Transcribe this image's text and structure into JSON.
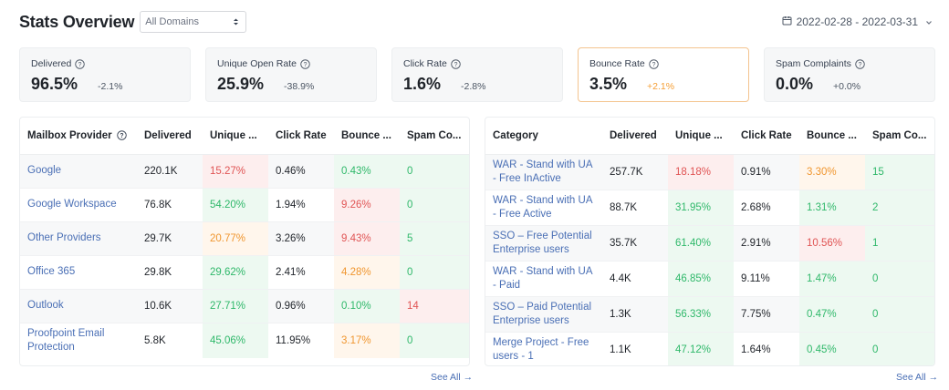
{
  "header": {
    "title": "Stats Overview",
    "domain_select": "All Domains",
    "date_range": "2022-02-28 - 2022-03-31"
  },
  "kpis": [
    {
      "label": "Delivered",
      "value": "96.5%",
      "change": "-2.1%"
    },
    {
      "label": "Unique Open Rate",
      "value": "25.9%",
      "change": "-38.9%"
    },
    {
      "label": "Click Rate",
      "value": "1.6%",
      "change": "-2.8%"
    },
    {
      "label": "Bounce Rate",
      "value": "3.5%",
      "change": "+2.1%"
    },
    {
      "label": "Spam Complaints",
      "value": "0.0%",
      "change": "+0.0%"
    }
  ],
  "mailbox_table": {
    "headers": [
      "Mailbox Provider",
      "Delivered",
      "Unique ...",
      "Click Rate",
      "Bounce ...",
      "Spam Co..."
    ],
    "rows": [
      {
        "name": "Google",
        "delivered": "220.1K",
        "open": "15.27%",
        "click": "0.46%",
        "bounce": "0.43%",
        "spam": "0"
      },
      {
        "name": "Google Workspace",
        "delivered": "76.8K",
        "open": "54.20%",
        "click": "1.94%",
        "bounce": "9.26%",
        "spam": "0"
      },
      {
        "name": "Other Providers",
        "delivered": "29.7K",
        "open": "20.77%",
        "click": "3.26%",
        "bounce": "9.43%",
        "spam": "5"
      },
      {
        "name": "Office 365",
        "delivered": "29.8K",
        "open": "29.62%",
        "click": "2.41%",
        "bounce": "4.28%",
        "spam": "0"
      },
      {
        "name": "Outlook",
        "delivered": "10.6K",
        "open": "27.71%",
        "click": "0.96%",
        "bounce": "0.10%",
        "spam": "14"
      },
      {
        "name": "Proofpoint Email Protection",
        "delivered": "5.8K",
        "open": "45.06%",
        "click": "11.95%",
        "bounce": "3.17%",
        "spam": "0"
      }
    ],
    "see_all": "See All →"
  },
  "category_table": {
    "headers": [
      "Category",
      "Delivered",
      "Unique ...",
      "Click Rate",
      "Bounce ...",
      "Spam Co..."
    ],
    "rows": [
      {
        "name": "WAR - Stand with UA - Free InActive",
        "delivered": "257.7K",
        "open": "18.18%",
        "click": "0.91%",
        "bounce": "3.30%",
        "spam": "15"
      },
      {
        "name": "WAR - Stand with UA - Free Active",
        "delivered": "88.7K",
        "open": "31.95%",
        "click": "2.68%",
        "bounce": "1.31%",
        "spam": "2"
      },
      {
        "name": "SSO – Free Potential Enterprise users",
        "delivered": "35.7K",
        "open": "61.40%",
        "click": "2.91%",
        "bounce": "10.56%",
        "spam": "1"
      },
      {
        "name": "WAR - Stand with UA - Paid",
        "delivered": "4.4K",
        "open": "46.85%",
        "click": "9.11%",
        "bounce": "1.47%",
        "spam": "0"
      },
      {
        "name": "SSO – Paid Potential Enterprise users",
        "delivered": "1.3K",
        "open": "56.33%",
        "click": "7.75%",
        "bounce": "0.47%",
        "spam": "0"
      },
      {
        "name": "Merge Project - Free users - 1",
        "delivered": "1.1K",
        "open": "47.12%",
        "click": "1.64%",
        "bounce": "0.45%",
        "spam": "0"
      }
    ],
    "see_all": "See All →"
  },
  "colors": {
    "link": "#4a6fb5",
    "red": "#e05454",
    "green": "#2fb86a",
    "orange": "#f0962f",
    "highlight_border": "#f4c48f"
  }
}
